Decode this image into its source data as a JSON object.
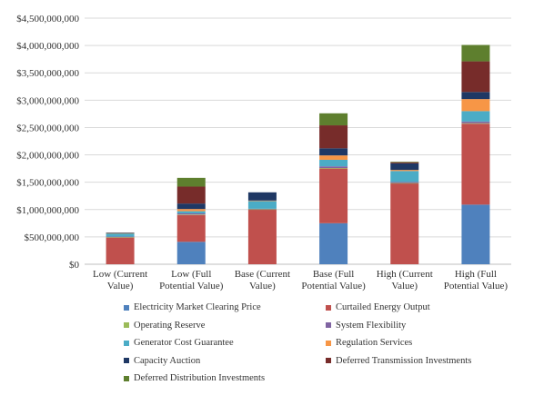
{
  "chart_data": {
    "type": "bar",
    "stacked": true,
    "categories": [
      [
        "Low (Current",
        "Value)"
      ],
      [
        "Low (Full",
        "Potential Value)"
      ],
      [
        "Base (Current",
        "Value)"
      ],
      [
        "Base (Full",
        "Potential Value)"
      ],
      [
        "High (Current",
        "Value)"
      ],
      [
        "High (Full",
        "Potential Value)"
      ]
    ],
    "ylim": [
      0,
      4500000000
    ],
    "yticks": [
      0,
      500000000,
      1000000000,
      1500000000,
      2000000000,
      2500000000,
      3000000000,
      3500000000,
      4000000000,
      4500000000
    ],
    "ytick_labels": [
      "$0",
      "$500,000,000",
      "$1,000,000,000",
      "$1,500,000,000",
      "$2,000,000,000",
      "$2,500,000,000",
      "$3,000,000,000",
      "$3,500,000,000",
      "$4,000,000,000",
      "$4,500,000,000"
    ],
    "grid": true,
    "legend_position": "bottom",
    "series": [
      {
        "name": "Electricity Market Clearing Price",
        "color": "#4f81bd",
        "values": [
          0,
          410000000,
          0,
          750000000,
          0,
          1090000000
        ]
      },
      {
        "name": "Curtailed Energy Output",
        "color": "#c0504d",
        "values": [
          490000000,
          490000000,
          1000000000,
          1000000000,
          1480000000,
          1480000000
        ]
      },
      {
        "name": "Operating Reserve",
        "color": "#9bbb59",
        "values": [
          5000000,
          10000000,
          5000000,
          10000000,
          5000000,
          10000000
        ]
      },
      {
        "name": "System Flexibility",
        "color": "#8064a2",
        "values": [
          10000000,
          20000000,
          10000000,
          30000000,
          20000000,
          30000000
        ]
      },
      {
        "name": "Generator Cost Guarantee",
        "color": "#4bacc6",
        "values": [
          60000000,
          40000000,
          140000000,
          120000000,
          200000000,
          190000000
        ]
      },
      {
        "name": "Regulation Services",
        "color": "#f79646",
        "values": [
          5000000,
          40000000,
          10000000,
          80000000,
          20000000,
          220000000
        ]
      },
      {
        "name": "Capacity Auction",
        "color": "#1f3864",
        "values": [
          10000000,
          100000000,
          150000000,
          130000000,
          120000000,
          130000000
        ]
      },
      {
        "name": "Deferred Transmission Investments",
        "color": "#772c2a",
        "values": [
          0,
          310000000,
          0,
          420000000,
          20000000,
          560000000
        ]
      },
      {
        "name": "Deferred Distribution Investments",
        "color": "#5e7f2e",
        "values": [
          0,
          160000000,
          0,
          220000000,
          10000000,
          300000000
        ]
      }
    ]
  }
}
